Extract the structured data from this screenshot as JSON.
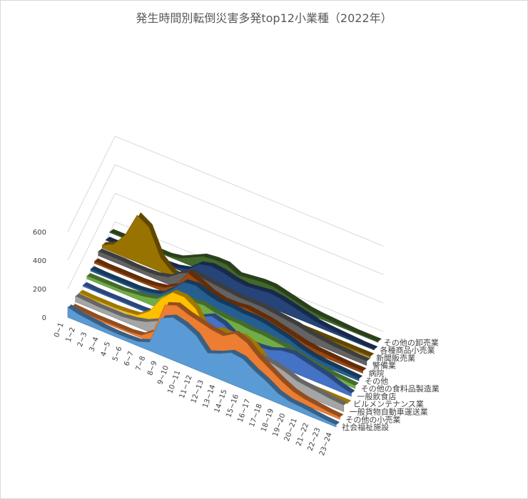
{
  "chart_data": {
    "type": "area",
    "subtype": "3d-area",
    "title": "発生時間別転倒災害多発top12小業種（2022年）",
    "xlabel": "",
    "ylabel": "",
    "ylim": [
      0,
      600
    ],
    "y_ticks": [
      "0",
      "200",
      "400",
      "600"
    ],
    "categories": [
      "0~1",
      "1~2",
      "2~3",
      "3~4",
      "4~5",
      "5~6",
      "6~7",
      "7~8",
      "8~9",
      "9~10",
      "10~11",
      "11~12",
      "12~13",
      "13~14",
      "14~15",
      "15~16",
      "16~17",
      "17~18",
      "18~19",
      "19~20",
      "20~21",
      "21~22",
      "22~23",
      "23~24"
    ],
    "series": [
      {
        "name": "社会福祉施設",
        "color": "#5b9bd5",
        "values": [
          70,
          50,
          40,
          30,
          25,
          25,
          30,
          60,
          260,
          300,
          280,
          240,
          150,
          180,
          220,
          210,
          160,
          120,
          70,
          45,
          40,
          30,
          20,
          15
        ]
      },
      {
        "name": "その他の小売業",
        "color": "#ed7d31",
        "values": [
          20,
          15,
          10,
          10,
          10,
          10,
          20,
          80,
          300,
          330,
          300,
          280,
          260,
          250,
          300,
          270,
          200,
          150,
          100,
          60,
          40,
          30,
          20,
          15
        ]
      },
      {
        "name": "一般貨物自動車運送業",
        "color": "#a5a5a5",
        "values": [
          40,
          35,
          30,
          30,
          30,
          40,
          60,
          100,
          140,
          150,
          150,
          160,
          120,
          130,
          150,
          140,
          140,
          130,
          110,
          80,
          70,
          60,
          50,
          45
        ]
      },
      {
        "name": "ビルメンテナンス業",
        "color": "#ffc000",
        "values": [
          10,
          5,
          5,
          5,
          10,
          20,
          80,
          200,
          280,
          280,
          230,
          100,
          150,
          150,
          170,
          140,
          70,
          40,
          20,
          10,
          5,
          5,
          5,
          5
        ]
      },
      {
        "name": "一般飲食店",
        "color": "#4472c4",
        "values": [
          10,
          5,
          5,
          5,
          5,
          5,
          10,
          30,
          60,
          100,
          120,
          160,
          140,
          90,
          80,
          80,
          90,
          120,
          130,
          110,
          90,
          70,
          40,
          20
        ]
      },
      {
        "name": "その他の食料品製造業",
        "color": "#70ad47",
        "values": [
          20,
          20,
          20,
          20,
          30,
          40,
          60,
          130,
          150,
          140,
          150,
          130,
          120,
          120,
          110,
          110,
          100,
          90,
          70,
          50,
          40,
          30,
          25,
          20
        ]
      },
      {
        "name": "その他",
        "color": "#255e91",
        "values": [
          15,
          10,
          10,
          10,
          10,
          20,
          40,
          110,
          190,
          200,
          170,
          150,
          150,
          140,
          140,
          130,
          110,
          90,
          60,
          40,
          30,
          25,
          20,
          15
        ]
      },
      {
        "name": "病院",
        "color": "#9e480e",
        "values": [
          15,
          10,
          10,
          10,
          10,
          15,
          30,
          80,
          200,
          170,
          130,
          110,
          110,
          120,
          110,
          100,
          80,
          60,
          40,
          30,
          25,
          20,
          15,
          15
        ]
      },
      {
        "name": "警備業",
        "color": "#636363",
        "values": [
          30,
          30,
          30,
          25,
          25,
          30,
          50,
          110,
          150,
          140,
          130,
          120,
          110,
          110,
          110,
          100,
          90,
          80,
          60,
          50,
          40,
          35,
          30,
          30
        ]
      },
      {
        "name": "新聞販売業",
        "color": "#997300",
        "values": [
          20,
          60,
          160,
          330,
          280,
          100,
          30,
          20,
          15,
          15,
          15,
          15,
          10,
          10,
          10,
          10,
          10,
          10,
          10,
          10,
          10,
          10,
          10,
          10
        ]
      },
      {
        "name": "各種商品小売業",
        "color": "#264478",
        "values": [
          5,
          5,
          5,
          5,
          5,
          5,
          10,
          30,
          100,
          120,
          110,
          90,
          80,
          90,
          100,
          90,
          70,
          50,
          30,
          20,
          15,
          10,
          5,
          5
        ]
      },
      {
        "name": "その他の卸売業",
        "color": "#43682b",
        "values": [
          5,
          5,
          5,
          5,
          5,
          5,
          20,
          60,
          100,
          110,
          110,
          70,
          80,
          90,
          90,
          70,
          50,
          30,
          20,
          15,
          10,
          5,
          5,
          5
        ]
      }
    ],
    "legend": "right-slanted-series-axis",
    "grid": true
  }
}
